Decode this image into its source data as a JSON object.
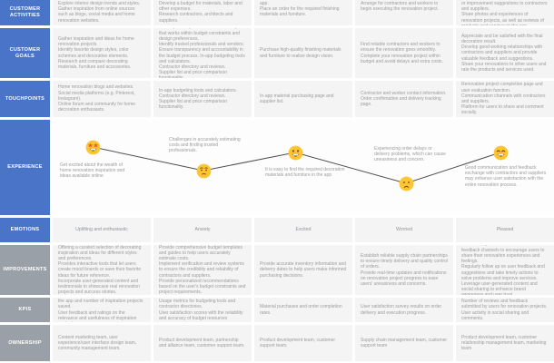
{
  "journey_map": {
    "row_labels": [
      "CUSTOMER ACTIVITIES",
      "CUSTOMER GOALS",
      "TOUCHPOINTS",
      "EXPERIENCE",
      "EMOTIONS",
      "IMPROVEMENTS",
      "KPIs",
      "OWNERSHIP"
    ],
    "colors": {
      "header_blue": "#4a74c8",
      "header_gray": "#9aa0a8",
      "cell_background": "#f4f4f4",
      "body_text": "#9c9c9c",
      "curve_line": "#4d4d4d",
      "emoji_face": "#fcc531"
    },
    "columns": [
      {
        "activities": "Explore interior design trends and styles.\nGather inspiration from online sources such as blogs, social media and home renovation websites.",
        "goals": "Gather inspiration and ideas for home renovation projects.\nIdentify favorite design styles, color schemes and decorative elements.\nResearch and compare decorating materials, furniture and accessories.",
        "touchpoints": "Home renovation blogs and websites.\nSocial media platforms (e.g. Pinterest, Instagram).\nOnline forum and community for home decoration enthusiasts.",
        "experience": {
          "emoji": "star-struck",
          "text": "Get excited about the wealth of home renovation inspiration and ideas available online"
        },
        "emotion": "Uplifting and enthusiastic",
        "improvements": "Offering a curated selection of decorating inspiration and ideas for different styles and preferences.\nProvides interactive tools that let users create mood boards or save their favorite ideas for future reference.\nIncorporate user-generated content and testimonials to showcase real renovation projects and success stories.",
        "kpis": "App usage metrics such as time spent on the app and number of inspiration projects saved.\nUser feedback and ratings on the relevance and usefulness of inspiration content.",
        "ownership": "Content marketing team, user experience/user interface design team, community management team."
      },
      {
        "activities": "Develop a budget for materials, labor and other expenses.\nResearch contractors, architects and suppliers.",
        "goals": "Develop a comprehensive renovation plan that works within budget constraints and design preferences.\nIdentify trusted professionals and vendors.\nEnsure transparency and accountability in the budget process. In-app budgeting tools and calculators.\nContractor directory and reviews.\nSupplier list and price comparison functionality.",
        "touchpoints": "In-app budgeting tools and calculators.\nContractor directory and reviews.\nSupplier list and price comparison functionality.",
        "experience": {
          "emoji": "worried",
          "text": "Challenges in accurately estimating costs and finding trusted professionals."
        },
        "emotion": "Anxiety",
        "improvements": "Provide comprehensive budget templates and guides to help users accurately estimate costs.\nImplement verification and review systems to ensure the credibility and reliability of contractors and suppliers.\nProvide personalized recommendations based on the user's budget constraints and project requirements.",
        "kpis": "Usage metrics for budgeting tools and contractor directories.\nUser satisfaction scores with the reliability and accuracy of budget resources",
        "ownership": "Product development team, partnership and alliance team, customer support team."
      },
      {
        "activities": "app.\nPlace an order for the required finishing materials and furniture.",
        "goals": "Purchase high-quality finishing materials and furniture to realize design vision.",
        "touchpoints": "In-app material purchasing page and supplier list.",
        "experience": {
          "emoji": "open-smile",
          "text": "It is easy to find the required decoration materials and furniture in the app"
        },
        "emotion": "Excited",
        "improvements": "Provide accurate inventory information and delivery dates to help users make informed purchasing decisions.",
        "kpis": "Material purchases and order completion rates.",
        "ownership": "Product development team, customer support team."
      },
      {
        "activities": "Arrange for contractors and workers to begin executing the renovation project.",
        "goals": "Find reliable contractors and workers to ensure the renovation goes smoothly.\nComplete your renovation project within budget and avoid delays and extra costs.",
        "touchpoints": "Contractor and worker contact information.\nOrder confirmation and delivery tracking page.",
        "experience": {
          "emoji": "frown",
          "text": "Experiencing order delays or delivery problems, which can cause uneasiness and concern."
        },
        "emotion": "Worried",
        "improvements": "Establish reliable supply chain partnerships to ensure timely delivery and quality control of orders.\nProvide real-time updates and notifications on renovation project progress to ease users' uneasiness and concerns.",
        "kpis": "User satisfaction survey results on order delivery and execution progress.",
        "ownership": "Supply chain management team, customer support team"
      },
      {
        "activities": "or improvement suggestions to contractors and suppliers.\nShare photos and experiences of renovation projects, as well as reviews of products and services in the app.",
        "goals": "Appreciate and be satisfied with the final decoration result.\nDevelop good working relationships with contractors and suppliers and provide valuable feedback and suggestions.\nShare your renovations to other users and rate the products and services used.",
        "touchpoints": "Renovation project completion page and user evaluation function.\nCommunication channels with contractors and suppliers.\nPlatform for users to share and comment socially.",
        "experience": {
          "emoji": "grin",
          "text": "Good communication and feedback exchange with contractors and suppliers may enhance user satisfaction with the entire renovation process."
        },
        "emotion": "Pleased",
        "improvements": "Provide easy-to-use evaluation and feedback channels to encourage users to share their renovation experiences and feelings.\nRegularly follow up on user feedback and suggestions and take timely actions to solve problems and improve services.\nLeverage user-generated content and social sharing to enhance brand awareness and user trust.",
        "kpis": "Number of reviews and feedback submitted by users for renovation projects.\nUser activity in social sharing and comments.",
        "ownership": "Product development team, customer relationship management team, marketing team"
      }
    ]
  }
}
